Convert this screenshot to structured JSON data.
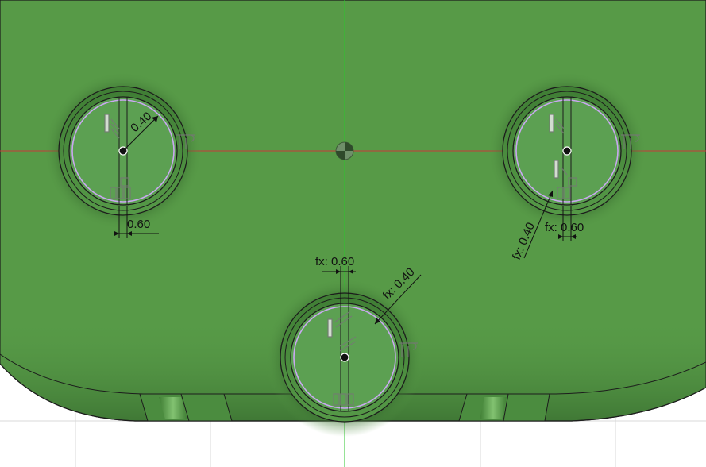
{
  "viewport": {
    "title": "",
    "colors": {
      "part": "#579a47",
      "part_dark": "#3c7a30",
      "hole_face": "#5ca052",
      "background": "#ffffff",
      "grid": "#d7d7d7",
      "x_axis": "#c8383a",
      "y_axis": "#2ec72e",
      "sketch_circle": "#c9a8f0",
      "edge": "#1c1c1c"
    },
    "icons": [
      "origin-icon",
      "vertical-constraint-icon",
      "coincident-constraint-icon",
      "tangent-constraint-icon"
    ]
  },
  "dimensions": {
    "left_radius": "0.40",
    "left_width": "0.60",
    "bottom_width": "fx: 0.60",
    "bottom_radius": "fx: 0.40",
    "right_radius": "fx: 0.40",
    "right_width": "fx: 0.60"
  }
}
